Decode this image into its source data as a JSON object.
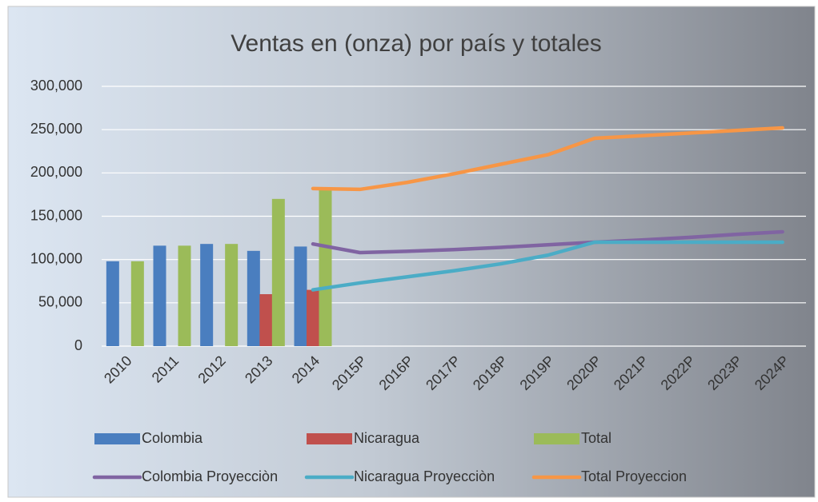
{
  "chart_data": {
    "type": "bar",
    "title": "Ventas en (onza) por país y totales",
    "categories": [
      "2010",
      "2011",
      "2012",
      "2013",
      "2014",
      "2015P",
      "2016P",
      "2017P",
      "2018P",
      "2019P",
      "2020P",
      "2021P",
      "2022P",
      "2023P",
      "2024P"
    ],
    "series": [
      {
        "name": "Colombia",
        "type": "bar",
        "color": "#4a7ebf",
        "values": [
          98000,
          116000,
          118000,
          110000,
          115000,
          null,
          null,
          null,
          null,
          null,
          null,
          null,
          null,
          null,
          null
        ]
      },
      {
        "name": "Nicaragua",
        "type": "bar",
        "color": "#c0504d",
        "values": [
          null,
          null,
          null,
          60000,
          65000,
          null,
          null,
          null,
          null,
          null,
          null,
          null,
          null,
          null,
          null
        ]
      },
      {
        "name": "Total",
        "type": "bar",
        "color": "#9bbb59",
        "values": [
          98000,
          116000,
          118000,
          170000,
          182000,
          null,
          null,
          null,
          null,
          null,
          null,
          null,
          null,
          null,
          null
        ]
      },
      {
        "name": "Colombia Proyecciòn",
        "type": "line",
        "color": "#8064a2",
        "values": [
          null,
          null,
          null,
          null,
          118000,
          108000,
          109500,
          111500,
          114000,
          117000,
          120000,
          122500,
          125500,
          129000,
          132000
        ]
      },
      {
        "name": "Nicaragua Proyecciòn",
        "type": "line",
        "color": "#4bacc6",
        "values": [
          null,
          null,
          null,
          null,
          65000,
          73000,
          80000,
          87000,
          95000,
          105000,
          120000,
          120000,
          120000,
          120000,
          120000
        ]
      },
      {
        "name": "Total Proyeccion",
        "type": "line",
        "color": "#f79646",
        "values": [
          null,
          null,
          null,
          null,
          182000,
          181000,
          189000,
          199000,
          210000,
          221000,
          240000,
          243000,
          246000,
          249000,
          252000
        ]
      }
    ],
    "ylim": [
      0,
      300000
    ],
    "yticks": [
      0,
      {
        "value": 50000,
        "label": "50,000"
      },
      {
        "value": 100000,
        "label": "100,000"
      },
      {
        "value": 150000,
        "label": "150,000"
      },
      {
        "value": 200000,
        "label": "200,000"
      },
      {
        "value": 250000,
        "label": "250,000"
      },
      {
        "value": 300000,
        "label": "300,000"
      }
    ],
    "grid": true
  }
}
